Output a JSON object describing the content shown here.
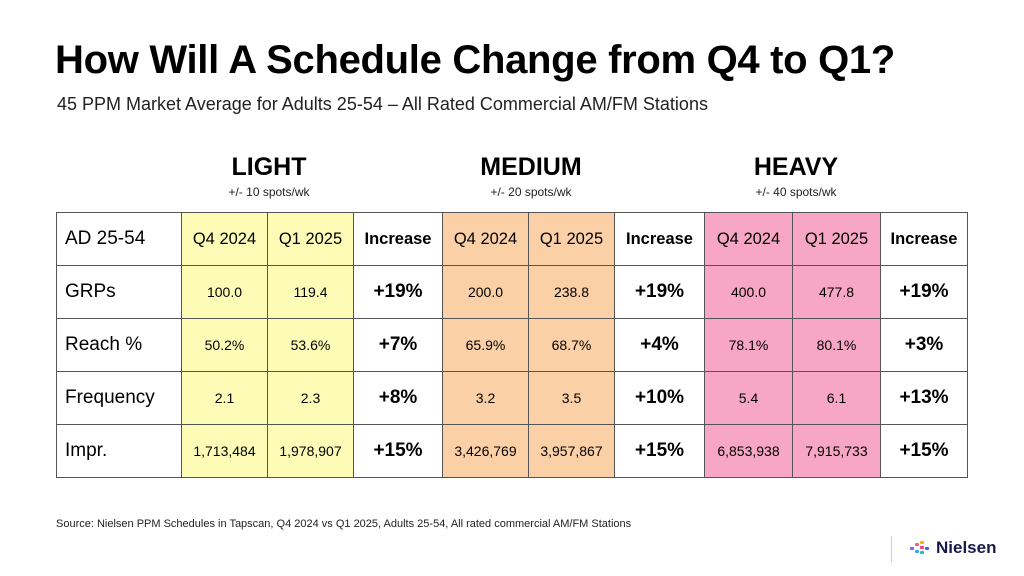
{
  "title": "How Will A Schedule Change from Q4 to Q1?",
  "subtitle": "45 PPM Market Average for Adults 25-54 – All Rated Commercial AM/FM Stations",
  "groups": [
    {
      "name": "LIGHT",
      "spots": "+/- 10 spots/wk",
      "color": "#fdfcb6"
    },
    {
      "name": "MEDIUM",
      "spots": "+/- 20 spots/wk",
      "color": "#fbd0a7"
    },
    {
      "name": "HEAVY",
      "spots": "+/- 40 spots/wk",
      "color": "#f7a6c4"
    }
  ],
  "table": {
    "header": [
      "AD 25-54",
      "Q4 2024",
      "Q1 2025",
      "Increase",
      "Q4 2024",
      "Q1 2025",
      "Increase",
      "Q4 2024",
      "Q1 2025",
      "Increase"
    ],
    "rows": [
      [
        "GRPs",
        "100.0",
        "119.4",
        "+19%",
        "200.0",
        "238.8",
        "+19%",
        "400.0",
        "477.8",
        "+19%"
      ],
      [
        "Reach %",
        "50.2%",
        "53.6%",
        "+7%",
        "65.9%",
        "68.7%",
        "+4%",
        "78.1%",
        "80.1%",
        "+3%"
      ],
      [
        "Frequency",
        "2.1",
        "2.3",
        "+8%",
        "3.2",
        "3.5",
        "+10%",
        "5.4",
        "6.1",
        "+13%"
      ],
      [
        "Impr.",
        "1,713,484",
        "1,978,907",
        "+15%",
        "3,426,769",
        "3,957,867",
        "+15%",
        "6,853,938",
        "7,915,733",
        "+15%"
      ]
    ]
  },
  "source": "Source: Nielsen PPM Schedules in Tapscan, Q4 2024 vs Q1 2025, Adults 25-54, All rated commercial AM/FM Stations",
  "logo": {
    "text": "Nielsen",
    "icon": "nielsen-logo-icon"
  }
}
